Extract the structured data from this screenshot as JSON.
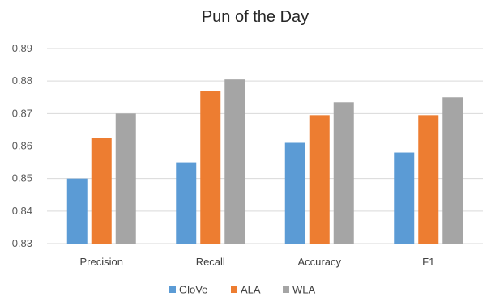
{
  "chart_data": {
    "type": "bar",
    "title": "Pun of the Day",
    "categories": [
      "Precision",
      "Recall",
      "Accuracy",
      "F1"
    ],
    "series": [
      {
        "name": "GloVe",
        "color": "#5b9bd5",
        "values": [
          0.85,
          0.855,
          0.861,
          0.858
        ]
      },
      {
        "name": "ALA",
        "color": "#ed7d31",
        "values": [
          0.8625,
          0.877,
          0.8695,
          0.8695
        ]
      },
      {
        "name": "WLA",
        "color": "#a5a5a5",
        "values": [
          0.87,
          0.8805,
          0.8735,
          0.875
        ]
      }
    ],
    "ylim": [
      0.83,
      0.89
    ],
    "yticks": [
      "0.83",
      "0.84",
      "0.85",
      "0.86",
      "0.87",
      "0.88",
      "0.89"
    ],
    "grid": true,
    "legend_position": "bottom",
    "xlabel": "",
    "ylabel": ""
  }
}
